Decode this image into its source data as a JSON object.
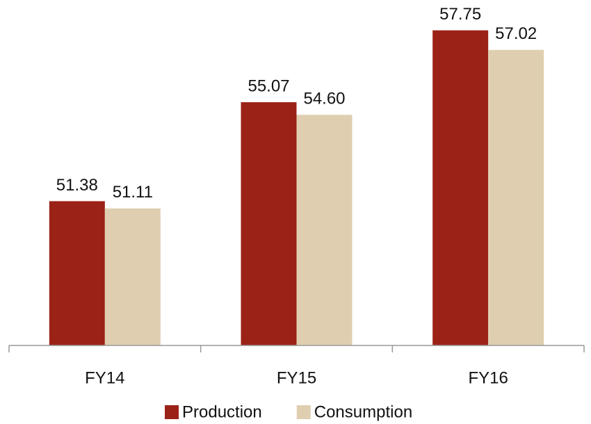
{
  "chart_data": {
    "type": "bar",
    "categories": [
      "FY14",
      "FY15",
      "FY16"
    ],
    "series": [
      {
        "name": "Production",
        "color": "#9b2216",
        "values": [
          51.38,
          55.07,
          57.75
        ],
        "value_labels": [
          "51.38",
          "55.07",
          "57.75"
        ]
      },
      {
        "name": "Consumption",
        "color": "#dfcfb0",
        "values": [
          51.11,
          54.6,
          57.02
        ],
        "value_labels": [
          "51.11",
          "54.60",
          "57.02"
        ]
      }
    ],
    "ylim": [
      46,
      58
    ],
    "legend": "bottom"
  }
}
